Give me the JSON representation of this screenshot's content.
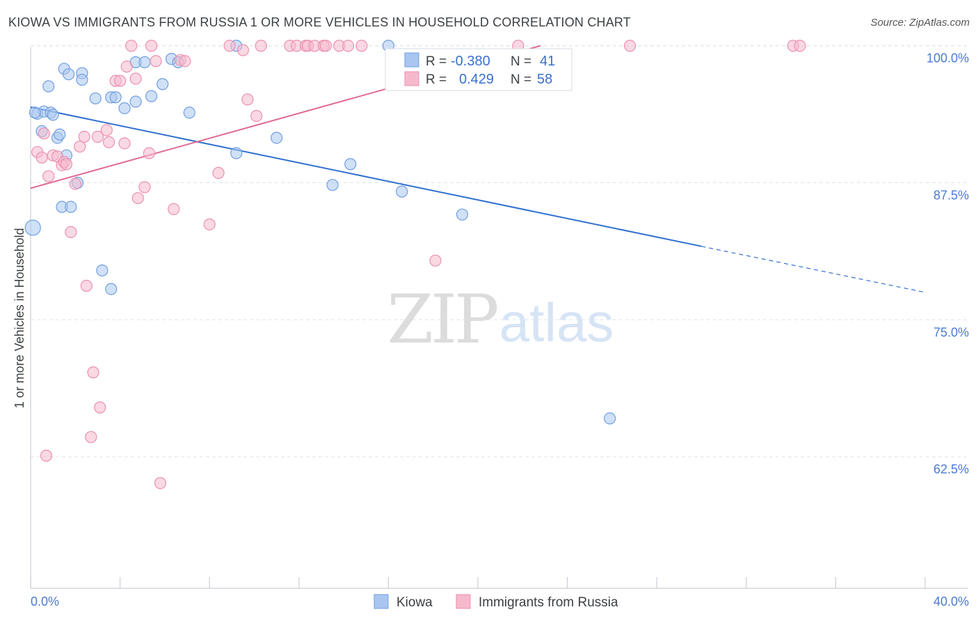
{
  "header": {
    "title": "KIOWA VS IMMIGRANTS FROM RUSSIA 1 OR MORE VEHICLES IN HOUSEHOLD CORRELATION CHART",
    "source": "Source: ZipAtlas.com"
  },
  "watermark": {
    "zip": "ZIP",
    "atlas": "atlas"
  },
  "colors": {
    "kiowa_fill": "#a9c6f0",
    "kiowa_stroke": "#6f9fe0",
    "kiowa_line": "#2f6fd0",
    "russia_fill": "#f6b9cc",
    "russia_stroke": "#ec8fb0",
    "russia_line": "#e06a94",
    "grid": "#dde3ea",
    "axis_text": "#4a7bd0"
  },
  "legend": {
    "rows": [
      {
        "r_label": "R =",
        "r_value": "-0.380",
        "n_label": "N =",
        "n_value": "41"
      },
      {
        "r_label": "R =",
        "r_value": "0.429",
        "n_label": "N =",
        "n_value": "58"
      }
    ]
  },
  "chart_data": {
    "type": "scatter",
    "title": "KIOWA VS IMMIGRANTS FROM RUSSIA 1 OR MORE VEHICLES IN HOUSEHOLD CORRELATION CHART",
    "xlabel": "",
    "ylabel": "1 or more Vehicles in Household",
    "xlim": [
      0,
      40
    ],
    "ylim": [
      50.5,
      101
    ],
    "x_tick_labels": [
      "0.0%",
      "40.0%"
    ],
    "y_ticks": [
      62.5,
      75.0,
      87.5,
      100.0
    ],
    "y_tick_labels": [
      "62.5%",
      "75.0%",
      "87.5%",
      "100.0%"
    ],
    "grid": true,
    "legend_position": "top-center",
    "series": [
      {
        "name": "Kiowa",
        "r": -0.38,
        "n": 41,
        "trend": {
          "x0": 0,
          "y0": 94.4,
          "x1": 30,
          "y1": 81.7,
          "dash_to_x": 40,
          "dash_to_y": 77.5
        },
        "points": [
          [
            0.1,
            83.4
          ],
          [
            0.3,
            93.8
          ],
          [
            0.5,
            92.2
          ],
          [
            0.6,
            94.0
          ],
          [
            0.8,
            96.3
          ],
          [
            0.9,
            93.9
          ],
          [
            1.0,
            93.7
          ],
          [
            1.2,
            91.6
          ],
          [
            1.3,
            91.9
          ],
          [
            1.4,
            85.3
          ],
          [
            1.5,
            97.9
          ],
          [
            1.6,
            90.0
          ],
          [
            1.7,
            97.4
          ],
          [
            1.8,
            85.3
          ],
          [
            2.1,
            87.5
          ],
          [
            2.3,
            97.5
          ],
          [
            2.3,
            96.9
          ],
          [
            2.9,
            95.2
          ],
          [
            3.2,
            79.5
          ],
          [
            3.6,
            77.8
          ],
          [
            3.6,
            95.3
          ],
          [
            3.8,
            95.3
          ],
          [
            4.2,
            94.3
          ],
          [
            4.7,
            94.9
          ],
          [
            4.7,
            98.5
          ],
          [
            5.1,
            98.5
          ],
          [
            5.4,
            95.4
          ],
          [
            5.9,
            96.5
          ],
          [
            6.3,
            98.8
          ],
          [
            6.6,
            98.5
          ],
          [
            7.1,
            93.9
          ],
          [
            9.2,
            90.2
          ],
          [
            9.2,
            100.0
          ],
          [
            11.0,
            91.6
          ],
          [
            13.5,
            87.3
          ],
          [
            14.3,
            89.2
          ],
          [
            16.0,
            100.0
          ],
          [
            16.6,
            86.7
          ],
          [
            19.3,
            84.6
          ],
          [
            25.9,
            66.0
          ],
          [
            0.2,
            93.9
          ]
        ]
      },
      {
        "name": "Immigrants from Russia",
        "r": 0.429,
        "n": 58,
        "trend": {
          "x0": 0,
          "y0": 87.0,
          "x1": 22.8,
          "y1": 100.0
        },
        "points": [
          [
            0.3,
            90.3
          ],
          [
            0.5,
            89.8
          ],
          [
            0.6,
            92.0
          ],
          [
            0.8,
            88.1
          ],
          [
            0.7,
            62.6
          ],
          [
            1.0,
            90.0
          ],
          [
            1.2,
            89.9
          ],
          [
            1.4,
            89.1
          ],
          [
            1.5,
            89.4
          ],
          [
            1.6,
            89.2
          ],
          [
            1.8,
            83.0
          ],
          [
            2.0,
            87.4
          ],
          [
            2.2,
            90.8
          ],
          [
            2.4,
            91.7
          ],
          [
            2.5,
            78.1
          ],
          [
            2.7,
            64.3
          ],
          [
            2.8,
            70.2
          ],
          [
            3.0,
            91.7
          ],
          [
            3.1,
            67.0
          ],
          [
            3.4,
            92.3
          ],
          [
            3.5,
            91.2
          ],
          [
            3.8,
            96.8
          ],
          [
            4.0,
            96.8
          ],
          [
            4.2,
            91.1
          ],
          [
            4.3,
            98.1
          ],
          [
            4.5,
            100.0
          ],
          [
            4.7,
            97.0
          ],
          [
            4.8,
            86.1
          ],
          [
            5.1,
            87.1
          ],
          [
            5.3,
            90.2
          ],
          [
            5.4,
            100.0
          ],
          [
            5.6,
            98.6
          ],
          [
            5.8,
            60.1
          ],
          [
            6.4,
            85.1
          ],
          [
            6.7,
            98.7
          ],
          [
            6.9,
            98.6
          ],
          [
            8.0,
            83.7
          ],
          [
            8.4,
            88.4
          ],
          [
            8.9,
            100.0
          ],
          [
            9.5,
            99.6
          ],
          [
            9.7,
            95.1
          ],
          [
            10.1,
            93.6
          ],
          [
            10.3,
            100.0
          ],
          [
            11.6,
            100.0
          ],
          [
            11.9,
            100.0
          ],
          [
            12.3,
            100.0
          ],
          [
            12.4,
            100.0
          ],
          [
            12.7,
            100.0
          ],
          [
            13.1,
            100.0
          ],
          [
            13.2,
            100.0
          ],
          [
            13.8,
            100.0
          ],
          [
            14.2,
            100.0
          ],
          [
            14.8,
            100.0
          ],
          [
            18.1,
            80.4
          ],
          [
            21.8,
            100.0
          ],
          [
            26.8,
            100.0
          ],
          [
            34.1,
            100.0
          ],
          [
            34.4,
            100.0
          ]
        ]
      }
    ]
  }
}
